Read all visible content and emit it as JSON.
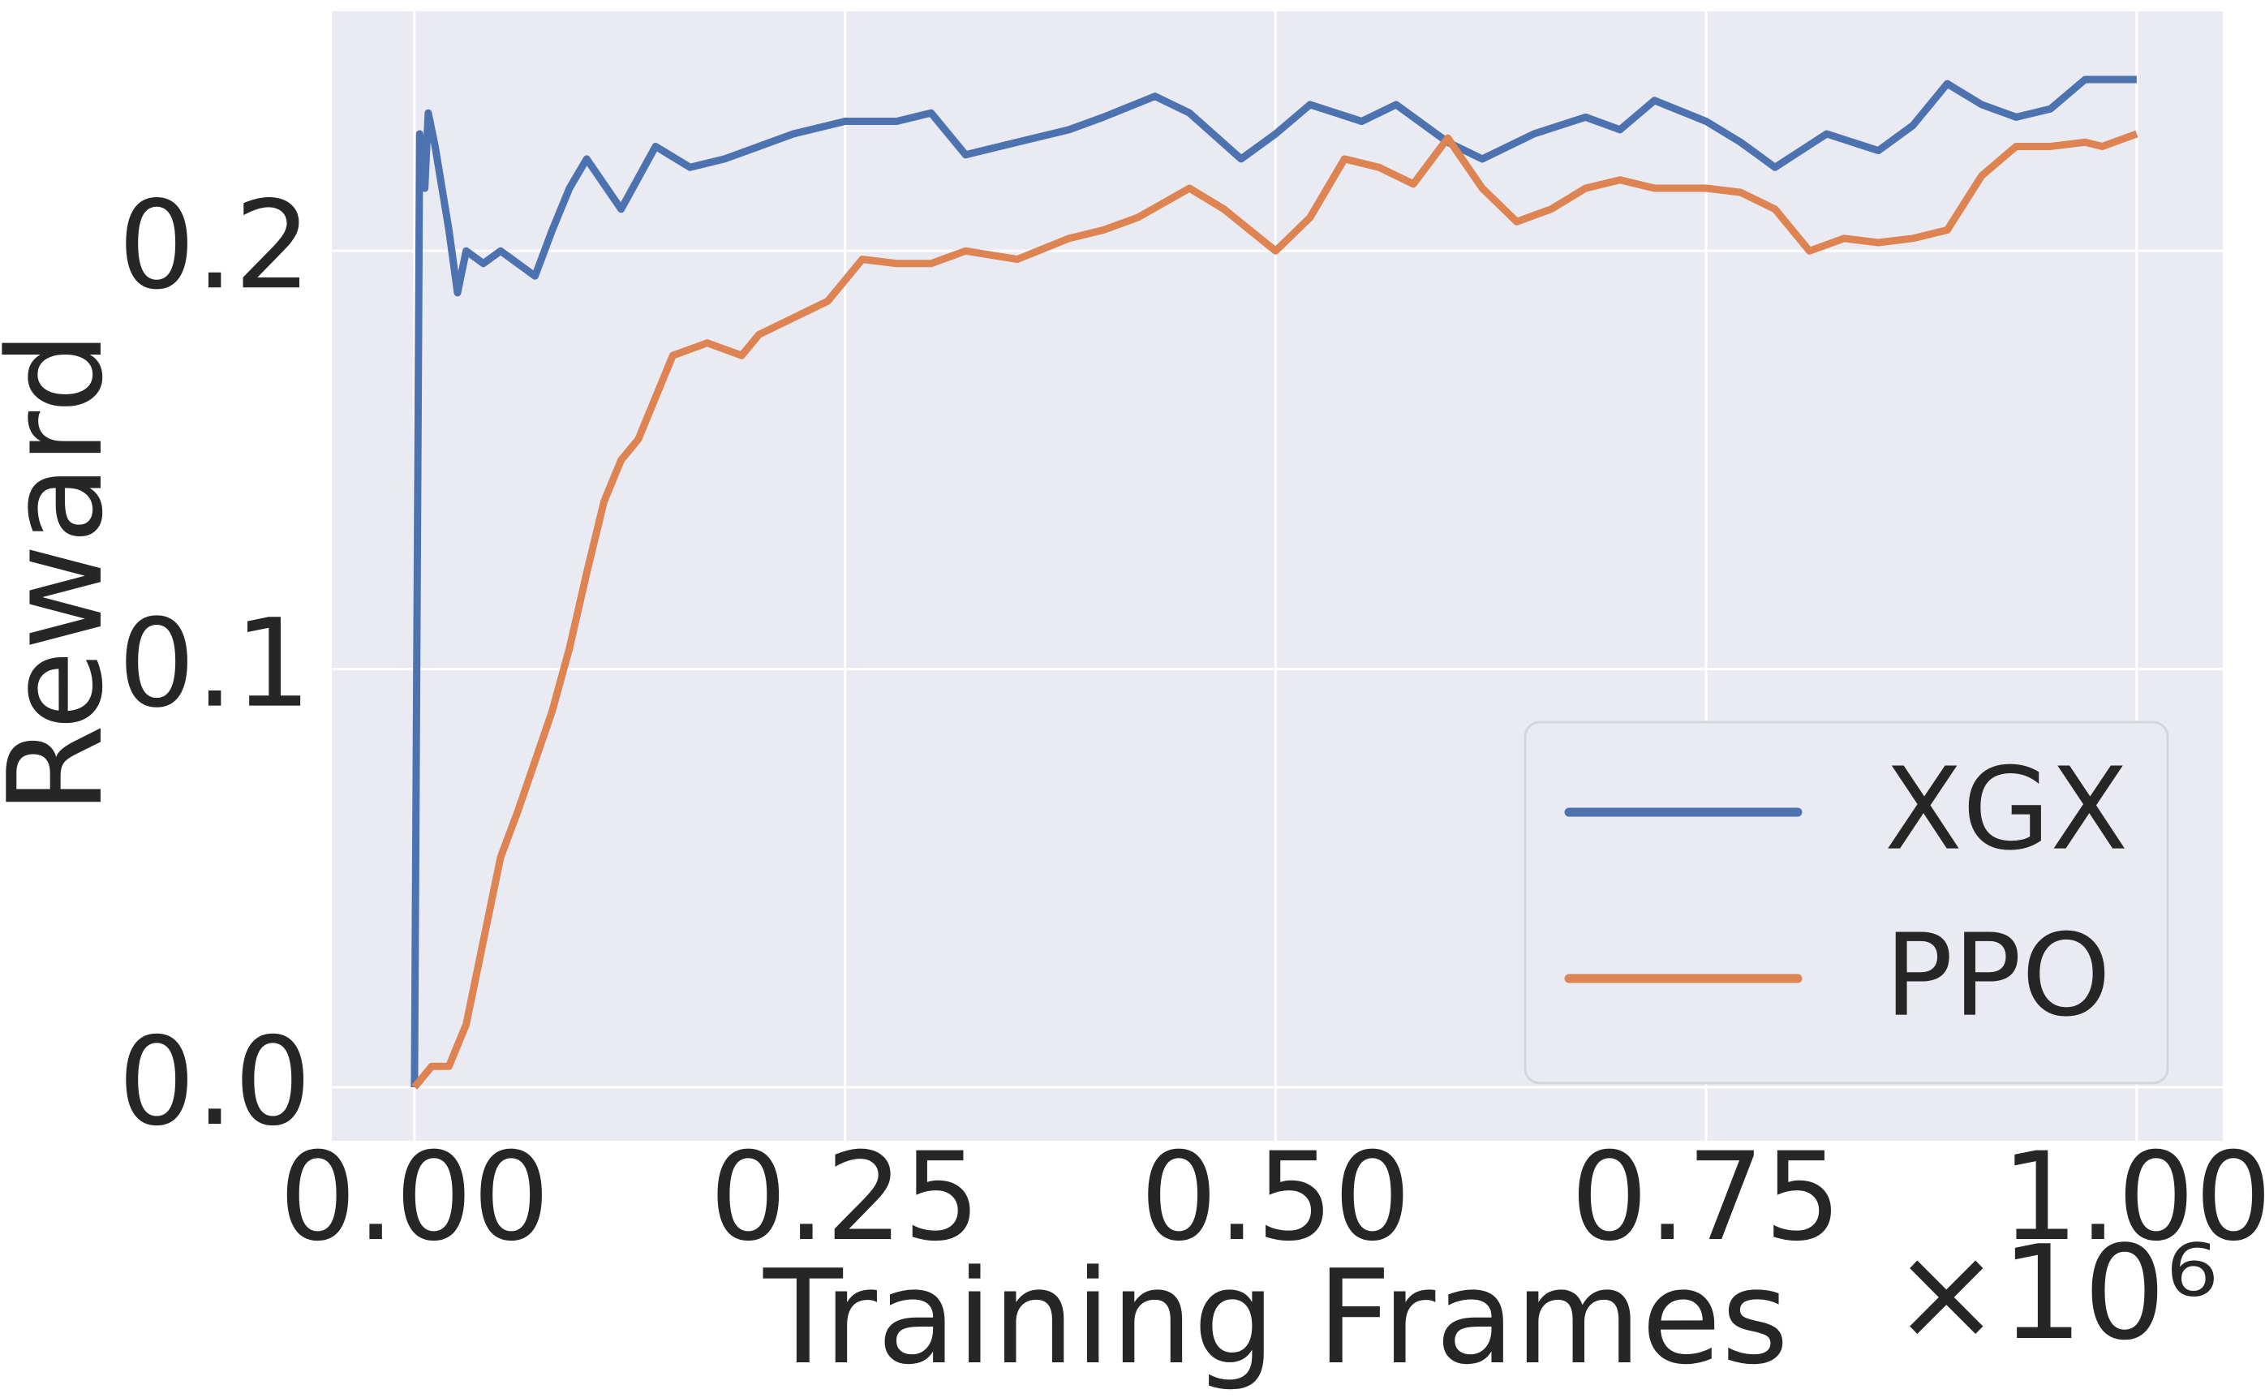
{
  "chart_data": {
    "type": "line",
    "x_label": "Training Frames",
    "y_label": "Reward",
    "x_offset_label": "×10⁶",
    "xlim": [
      -0.048,
      1.05
    ],
    "ylim": [
      -0.0128,
      0.2573
    ],
    "xticks": [
      {
        "value": 0,
        "label": "0.00"
      },
      {
        "value": 0.25,
        "label": "0.25"
      },
      {
        "value": 0.5,
        "label": "0.50"
      },
      {
        "value": 0.75,
        "label": "0.75"
      },
      {
        "value": 1,
        "label": "1.00"
      }
    ],
    "yticks": [
      {
        "value": 0,
        "label": "0.0"
      },
      0.1,
      0.2
    ],
    "grid": true,
    "legend": "lower right",
    "series": [
      {
        "name": "XGX",
        "color": "#4c72b0",
        "x": [
          0,
          0.003,
          0.006,
          0.008,
          0.012,
          0.02,
          0.025,
          0.03,
          0.04,
          0.05,
          0.06,
          0.07,
          0.08,
          0.09,
          0.1,
          0.12,
          0.14,
          0.16,
          0.18,
          0.2,
          0.22,
          0.25,
          0.28,
          0.3,
          0.32,
          0.35,
          0.38,
          0.4,
          0.43,
          0.45,
          0.48,
          0.5,
          0.52,
          0.55,
          0.57,
          0.6,
          0.62,
          0.65,
          0.68,
          0.7,
          0.72,
          0.75,
          0.77,
          0.79,
          0.82,
          0.85,
          0.87,
          0.89,
          0.91,
          0.93,
          0.95,
          0.97,
          1.0
        ],
        "values": [
          0,
          0.228,
          0.215,
          0.233,
          0.225,
          0.205,
          0.19,
          0.2,
          0.197,
          0.2,
          0.197,
          0.194,
          0.205,
          0.215,
          0.222,
          0.21,
          0.225,
          0.22,
          0.222,
          0.225,
          0.228,
          0.231,
          0.231,
          0.233,
          0.223,
          0.226,
          0.229,
          0.232,
          0.237,
          0.233,
          0.222,
          0.228,
          0.235,
          0.231,
          0.235,
          0.226,
          0.222,
          0.228,
          0.232,
          0.229,
          0.236,
          0.231,
          0.226,
          0.22,
          0.228,
          0.224,
          0.23,
          0.24,
          0.235,
          0.232,
          0.234,
          0.241,
          0.241
        ]
      },
      {
        "name": "PPO",
        "color": "#dd8452",
        "x": [
          0,
          0.01,
          0.02,
          0.03,
          0.04,
          0.05,
          0.06,
          0.07,
          0.08,
          0.09,
          0.1,
          0.11,
          0.12,
          0.13,
          0.14,
          0.15,
          0.17,
          0.19,
          0.2,
          0.22,
          0.24,
          0.26,
          0.28,
          0.3,
          0.32,
          0.35,
          0.38,
          0.4,
          0.42,
          0.45,
          0.47,
          0.5,
          0.52,
          0.54,
          0.56,
          0.58,
          0.6,
          0.62,
          0.64,
          0.66,
          0.68,
          0.7,
          0.72,
          0.75,
          0.77,
          0.79,
          0.81,
          0.83,
          0.85,
          0.87,
          0.89,
          0.91,
          0.93,
          0.95,
          0.97,
          0.98,
          1.0
        ],
        "values": [
          0,
          0.005,
          0.005,
          0.015,
          0.035,
          0.055,
          0.066,
          0.078,
          0.09,
          0.105,
          0.123,
          0.14,
          0.15,
          0.155,
          0.165,
          0.175,
          0.178,
          0.175,
          0.18,
          0.184,
          0.188,
          0.198,
          0.197,
          0.197,
          0.2,
          0.198,
          0.203,
          0.205,
          0.208,
          0.215,
          0.21,
          0.2,
          0.208,
          0.222,
          0.22,
          0.216,
          0.227,
          0.215,
          0.207,
          0.21,
          0.215,
          0.217,
          0.215,
          0.215,
          0.214,
          0.21,
          0.2,
          0.203,
          0.202,
          0.203,
          0.205,
          0.218,
          0.225,
          0.225,
          0.226,
          0.225,
          0.228
        ]
      }
    ]
  }
}
